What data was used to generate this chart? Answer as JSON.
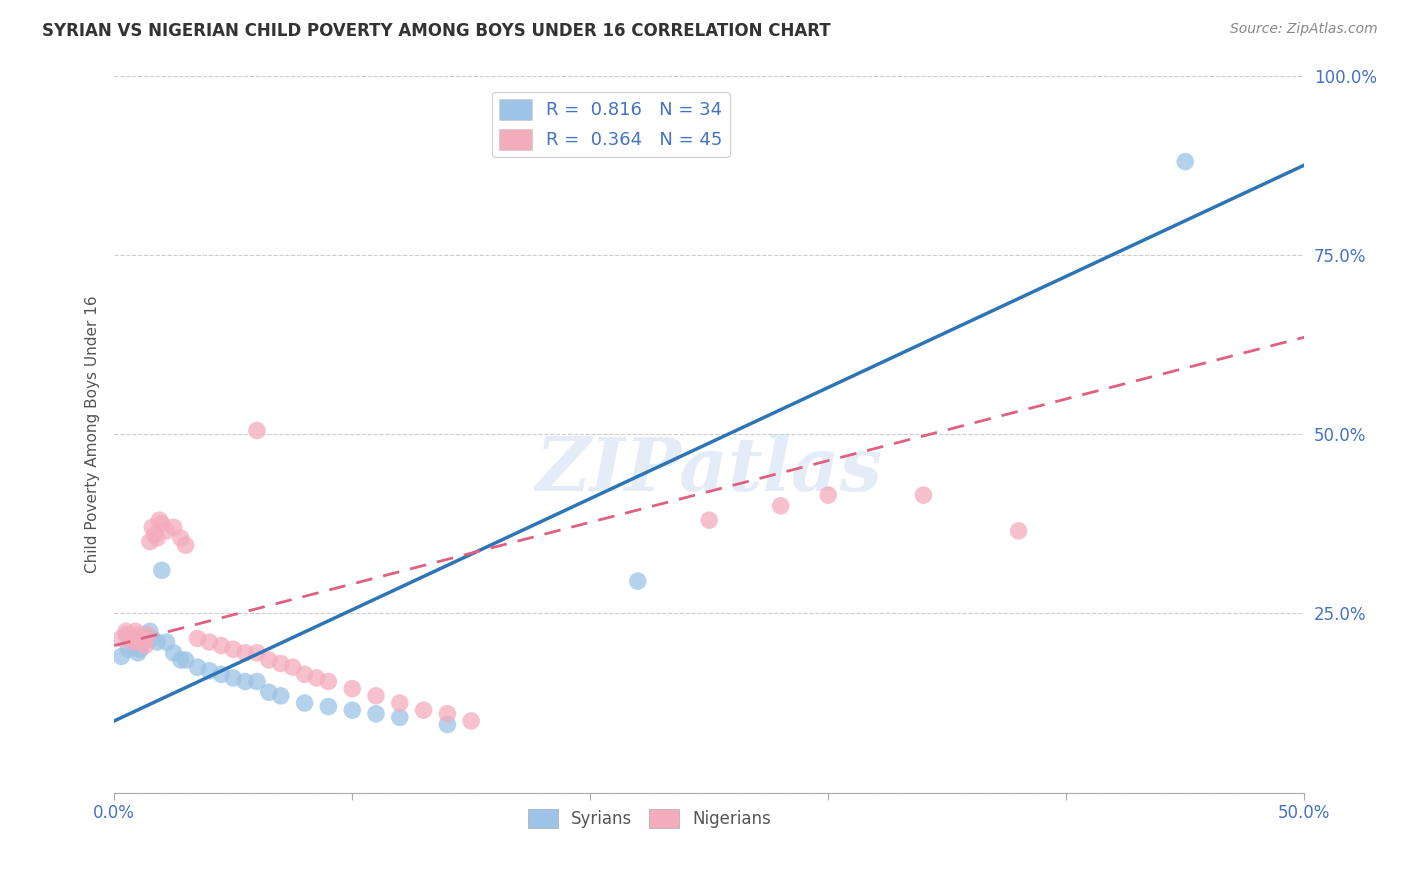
{
  "title": "SYRIAN VS NIGERIAN CHILD POVERTY AMONG BOYS UNDER 16 CORRELATION CHART",
  "source": "Source: ZipAtlas.com",
  "ylabel": "Child Poverty Among Boys Under 16",
  "watermark": "ZIPatlas",
  "legend_r_syrian": "0.816",
  "legend_n_syrian": "34",
  "legend_r_nigerian": "0.364",
  "legend_n_nigerian": "45",
  "syrian_color": "#9DC3E6",
  "nigerian_color": "#F4ACBC",
  "syrian_line_color": "#2E75B6",
  "nigerian_line_color": "#E06080",
  "xlim": [
    0.0,
    0.5
  ],
  "ylim": [
    0.0,
    1.0
  ],
  "syrian_scatter": [
    [
      0.003,
      0.19
    ],
    [
      0.005,
      0.22
    ],
    [
      0.006,
      0.2
    ],
    [
      0.007,
      0.215
    ],
    [
      0.008,
      0.205
    ],
    [
      0.009,
      0.21
    ],
    [
      0.01,
      0.195
    ],
    [
      0.011,
      0.2
    ],
    [
      0.012,
      0.215
    ],
    [
      0.013,
      0.22
    ],
    [
      0.015,
      0.225
    ],
    [
      0.016,
      0.215
    ],
    [
      0.018,
      0.21
    ],
    [
      0.02,
      0.31
    ],
    [
      0.022,
      0.21
    ],
    [
      0.025,
      0.195
    ],
    [
      0.028,
      0.185
    ],
    [
      0.03,
      0.185
    ],
    [
      0.035,
      0.175
    ],
    [
      0.04,
      0.17
    ],
    [
      0.045,
      0.165
    ],
    [
      0.05,
      0.16
    ],
    [
      0.055,
      0.155
    ],
    [
      0.06,
      0.155
    ],
    [
      0.065,
      0.14
    ],
    [
      0.07,
      0.135
    ],
    [
      0.08,
      0.125
    ],
    [
      0.09,
      0.12
    ],
    [
      0.1,
      0.115
    ],
    [
      0.11,
      0.11
    ],
    [
      0.12,
      0.105
    ],
    [
      0.14,
      0.095
    ],
    [
      0.22,
      0.295
    ],
    [
      0.45,
      0.88
    ]
  ],
  "nigerian_scatter": [
    [
      0.003,
      0.215
    ],
    [
      0.005,
      0.225
    ],
    [
      0.006,
      0.22
    ],
    [
      0.007,
      0.215
    ],
    [
      0.008,
      0.21
    ],
    [
      0.009,
      0.225
    ],
    [
      0.01,
      0.22
    ],
    [
      0.011,
      0.215
    ],
    [
      0.012,
      0.21
    ],
    [
      0.013,
      0.205
    ],
    [
      0.014,
      0.22
    ],
    [
      0.015,
      0.35
    ],
    [
      0.016,
      0.37
    ],
    [
      0.017,
      0.36
    ],
    [
      0.018,
      0.355
    ],
    [
      0.019,
      0.38
    ],
    [
      0.02,
      0.375
    ],
    [
      0.022,
      0.365
    ],
    [
      0.025,
      0.37
    ],
    [
      0.028,
      0.355
    ],
    [
      0.03,
      0.345
    ],
    [
      0.035,
      0.215
    ],
    [
      0.04,
      0.21
    ],
    [
      0.045,
      0.205
    ],
    [
      0.05,
      0.2
    ],
    [
      0.055,
      0.195
    ],
    [
      0.06,
      0.195
    ],
    [
      0.065,
      0.185
    ],
    [
      0.07,
      0.18
    ],
    [
      0.075,
      0.175
    ],
    [
      0.08,
      0.165
    ],
    [
      0.085,
      0.16
    ],
    [
      0.09,
      0.155
    ],
    [
      0.1,
      0.145
    ],
    [
      0.11,
      0.135
    ],
    [
      0.12,
      0.125
    ],
    [
      0.13,
      0.115
    ],
    [
      0.14,
      0.11
    ],
    [
      0.15,
      0.1
    ],
    [
      0.06,
      0.505
    ],
    [
      0.28,
      0.4
    ],
    [
      0.3,
      0.415
    ],
    [
      0.34,
      0.415
    ],
    [
      0.38,
      0.365
    ],
    [
      0.25,
      0.38
    ]
  ],
  "syrian_line": [
    [
      0.0,
      0.1
    ],
    [
      0.5,
      0.875
    ]
  ],
  "nigerian_line": [
    [
      0.0,
      0.205
    ],
    [
      0.5,
      0.635
    ]
  ]
}
